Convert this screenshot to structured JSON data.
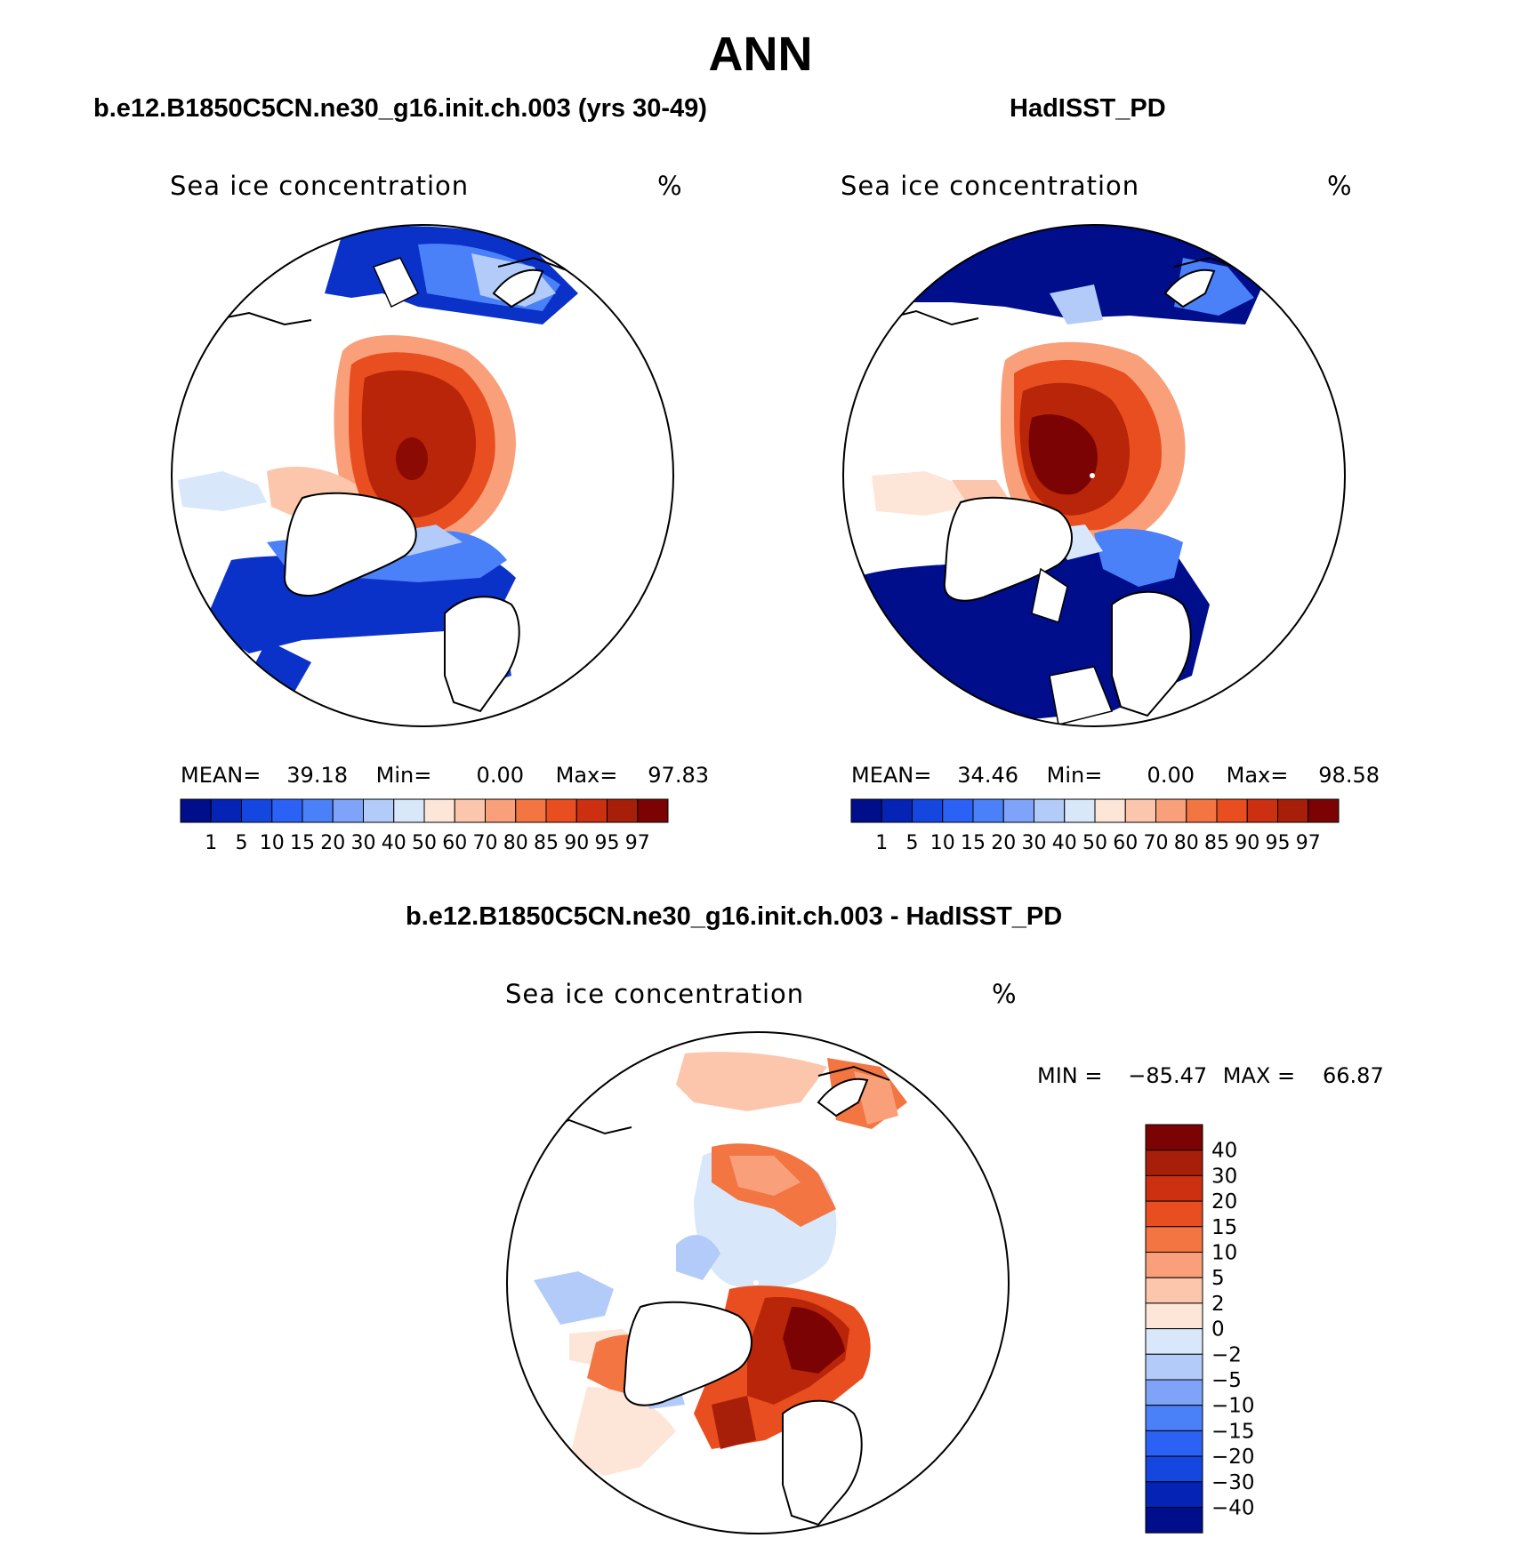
{
  "title": "ANN",
  "panels": [
    {
      "subtitle": "b.e12.B1850C5CN.ne30_g16.init.ch.003 (yrs 30-49)",
      "variable": "Sea ice concentration",
      "units": "%",
      "stats": {
        "mean_label": "MEAN=",
        "mean": "39.18",
        "min_label": "Min=",
        "min": "0.00",
        "max_label": "Max=",
        "max": "97.83"
      }
    },
    {
      "subtitle": "HadISST_PD",
      "variable": "Sea ice concentration",
      "units": "%",
      "stats": {
        "mean_label": "MEAN=",
        "mean": "34.46",
        "min_label": "Min=",
        "min": "0.00",
        "max_label": "Max=",
        "max": "98.58"
      }
    },
    {
      "subtitle": "b.e12.B1850C5CN.ne30_g16.init.ch.003 - HadISST_PD",
      "variable": "Sea ice concentration",
      "units": "%",
      "stats": {
        "min_label": "MIN =",
        "min": "−85.47",
        "max_label": "MAX =",
        "max": "66.87"
      }
    }
  ],
  "colorbar_horizontal": {
    "labels": [
      "1",
      "5",
      "10",
      "15",
      "20",
      "30",
      "40",
      "50",
      "60",
      "70",
      "80",
      "85",
      "90",
      "95",
      "97"
    ],
    "colors": [
      "#000e8c",
      "#0523b4",
      "#1446e0",
      "#2b62f5",
      "#4a80f8",
      "#7ea3f8",
      "#b3cbf9",
      "#d9e7fb",
      "#fde6d8",
      "#fbc6ab",
      "#f9a07a",
      "#f27542",
      "#e84e1f",
      "#cc3010",
      "#a81f09",
      "#7c0303"
    ]
  },
  "colorbar_vertical": {
    "labels": [
      "40",
      "30",
      "20",
      "15",
      "10",
      "5",
      "2",
      "0",
      "−2",
      "−5",
      "−10",
      "−15",
      "−20",
      "−30",
      "−40"
    ],
    "colors": [
      "#7c0303",
      "#a81f09",
      "#cc3010",
      "#e84e1f",
      "#f27542",
      "#f9a07a",
      "#fbc6ab",
      "#fde6d8",
      "#d9e7fb",
      "#b3cbf9",
      "#7ea3f8",
      "#4a80f8",
      "#2b62f5",
      "#1446e0",
      "#0523b4",
      "#000e8c"
    ]
  },
  "colors": {
    "land": "#ffffff",
    "outline": "#000000"
  }
}
